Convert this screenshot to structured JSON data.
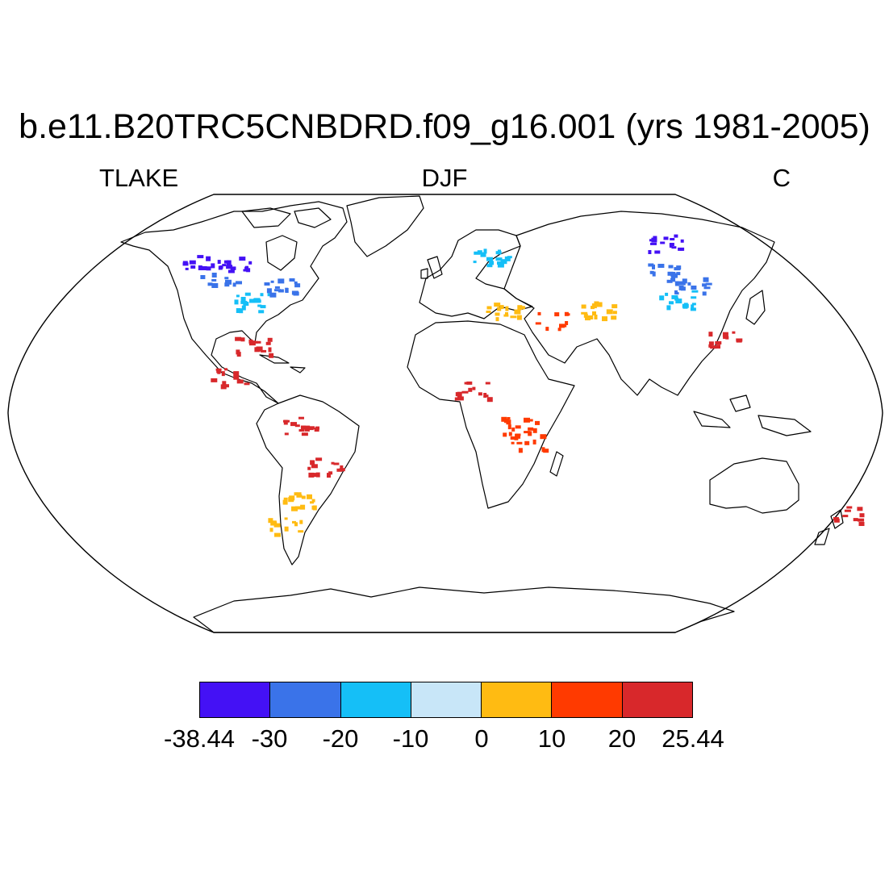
{
  "plot": {
    "title": "b.e11.B20TRC5CNBDRD.f09_g16.001 (yrs 1981-2005)",
    "variable": "TLAKE",
    "season": "DJF",
    "units": "C",
    "projection": "Robinson"
  },
  "colorbar": {
    "boxes": [
      {
        "color": "#4411f5"
      },
      {
        "color": "#3a73e9"
      },
      {
        "color": "#15bff7"
      },
      {
        "color": "#c8e6f8"
      },
      {
        "color": "#ffbb12"
      },
      {
        "color": "#ff3a00"
      },
      {
        "color": "#d8282b"
      }
    ],
    "ticks": [
      "-38.44",
      "-30",
      "-20",
      "-10",
      "0",
      "10",
      "20",
      "25.44"
    ]
  },
  "map_data": {
    "value_units": "C",
    "patches": [
      {
        "region": "northern Canada / Hudson Bay",
        "lon": -95,
        "lat": 62,
        "value": -35
      },
      {
        "region": "northern Canada west",
        "lon": -110,
        "lat": 63,
        "value": -32
      },
      {
        "region": "central Canada",
        "lon": -100,
        "lat": 55,
        "value": -25
      },
      {
        "region": "Great Lakes",
        "lon": -84,
        "lat": 46,
        "value": -15
      },
      {
        "region": "Quebec",
        "lon": -72,
        "lat": 52,
        "value": -22
      },
      {
        "region": "Scandinavia",
        "lon": 20,
        "lat": 64,
        "value": -15
      },
      {
        "region": "northern Siberia",
        "lon": 100,
        "lat": 70,
        "value": -32
      },
      {
        "region": "central Siberia",
        "lon": 95,
        "lat": 58,
        "value": -25
      },
      {
        "region": "Lake Baikal",
        "lon": 108,
        "lat": 53,
        "value": -28
      },
      {
        "region": "Mongolia",
        "lon": 100,
        "lat": 47,
        "value": -15
      },
      {
        "region": "Central Asia",
        "lon": 65,
        "lat": 43,
        "value": 5
      },
      {
        "region": "southern Europe",
        "lon": 25,
        "lat": 42,
        "value": 5
      },
      {
        "region": "Middle East",
        "lon": 45,
        "lat": 38,
        "value": 15
      },
      {
        "region": "eastern China",
        "lon": 117,
        "lat": 30,
        "value": 22
      },
      {
        "region": "Mexico / Central America",
        "lon": -90,
        "lat": 15,
        "value": 22
      },
      {
        "region": "Florida",
        "lon": -81,
        "lat": 28,
        "value": 22
      },
      {
        "region": "Amazon basin",
        "lon": -60,
        "lat": -5,
        "value": 22
      },
      {
        "region": "southern Brazil",
        "lon": -50,
        "lat": -22,
        "value": 22
      },
      {
        "region": "Argentina",
        "lon": -62,
        "lat": -35,
        "value": 5
      },
      {
        "region": "Patagonia",
        "lon": -70,
        "lat": -46,
        "value": 5
      },
      {
        "region": "East African lakes",
        "lon": 30,
        "lat": -5,
        "value": 18
      },
      {
        "region": "Lake Malawi",
        "lon": 34,
        "lat": -12,
        "value": 18
      },
      {
        "region": "West Africa",
        "lon": 10,
        "lat": 10,
        "value": 22
      },
      {
        "region": "New Zealand",
        "lon": 172,
        "lat": -42,
        "value": 22
      }
    ]
  }
}
